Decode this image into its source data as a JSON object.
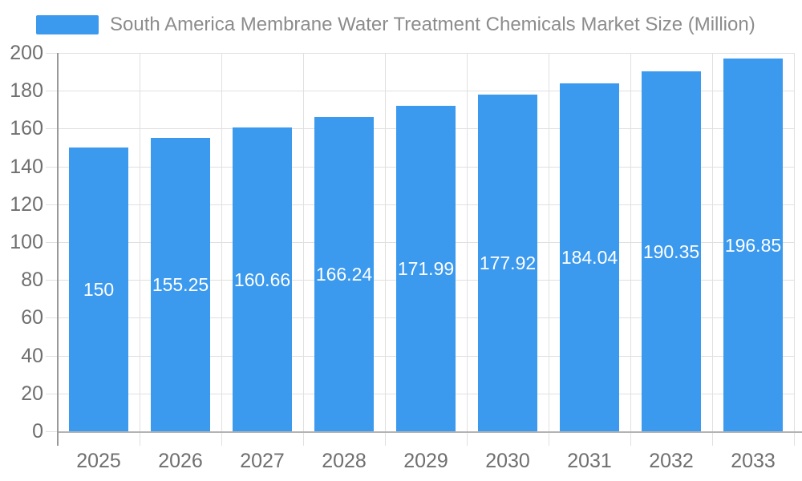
{
  "legend": {
    "label": "South America Membrane Water Treatment Chemicals Market Size (Million)"
  },
  "chart_data": {
    "type": "bar",
    "title": "South America Membrane Water Treatment Chemicals Market Size (Million)",
    "categories": [
      "2025",
      "2026",
      "2027",
      "2028",
      "2029",
      "2030",
      "2031",
      "2032",
      "2033"
    ],
    "values": [
      150,
      155.25,
      160.66,
      166.24,
      171.99,
      177.92,
      184.04,
      190.35,
      196.85
    ],
    "value_labels": [
      "150",
      "155.25",
      "160.66",
      "166.24",
      "171.99",
      "177.92",
      "184.04",
      "190.35",
      "196.85"
    ],
    "xlabel": "",
    "ylabel": "",
    "ylim": [
      0,
      200
    ],
    "ytick_step": 20,
    "ytick_labels": [
      "0",
      "20",
      "40",
      "60",
      "80",
      "100",
      "120",
      "140",
      "160",
      "180",
      "200"
    ],
    "grid": true,
    "legend_position": "top-left",
    "value_label_position": "bar-center",
    "colors": {
      "bar": "#3B99EE",
      "value_label": "#FFFFFF",
      "grid_line": "#E0E0E0",
      "y_axis_line": "#999999",
      "x_axis_line": "#B3B3B3",
      "tick_label": "#6F6F6F",
      "legend_text": "#8C8C8C",
      "background": "#FFFFFF"
    }
  }
}
